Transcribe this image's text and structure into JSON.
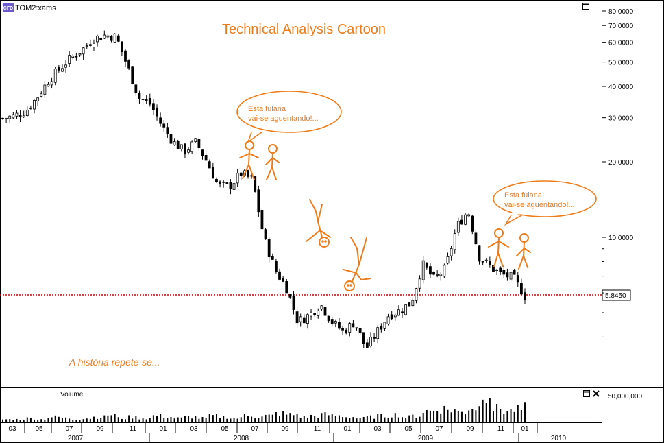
{
  "window": {
    "symbol_badge": "CFD",
    "symbol": "TOM2:xams"
  },
  "annotations": {
    "title": "Technical Analysis Cartoon",
    "bubble_left_line1": "Esta fulana",
    "bubble_left_line2": "vai-se aguentando!...",
    "bubble_right_line1": "Esta fulana",
    "bubble_right_line2": "vai-se aguentando!...",
    "caption": "A história repete-se..."
  },
  "colors": {
    "candles": "#000000",
    "drawing": "#ee7b1a",
    "reference_line": "#cc0000",
    "grid": "#000000"
  },
  "volume_panel": {
    "label": "Volume",
    "tick_label": "50,000,000"
  },
  "icons": {
    "main_panel": "maximize-icon",
    "volume_panel": [
      "maximize-icon",
      "close-icon"
    ]
  },
  "chart_data": {
    "type": "candlestick",
    "scale": "log",
    "y_ticks": [
      "80.0000",
      "70.0000",
      "60.0000",
      "50.0000",
      "40.0000",
      "30.0000",
      "20.0000",
      "10.0000"
    ],
    "y_tick_values": [
      80,
      70,
      60,
      50,
      40,
      30,
      20,
      10
    ],
    "ylim": [
      3.4,
      85
    ],
    "current_price_label": "5.8450",
    "current_price": 5.845,
    "x_month_labels": [
      "03",
      "05",
      "07",
      "09",
      "11",
      "01",
      "03",
      "05",
      "07",
      "09",
      "11",
      "01",
      "03",
      "05",
      "07",
      "09",
      "11",
      "01"
    ],
    "x_year_labels": [
      "2007",
      "2008",
      "2009",
      "2010"
    ],
    "weekly_close": [
      29.8,
      30.5,
      31.8,
      36,
      42,
      47,
      52,
      56,
      62,
      64,
      63,
      48,
      36,
      34,
      28,
      24,
      22,
      24,
      20,
      16,
      16,
      18,
      17,
      10,
      7.4,
      6.3,
      4.6,
      4.9,
      5.4,
      4.6,
      4.2,
      4.6,
      3.6,
      4.2,
      4.9,
      5.1,
      5.5,
      7.8,
      6.8,
      7.5,
      11,
      12.8,
      8.3,
      7.6,
      7.1,
      6.9,
      5.85
    ],
    "volume_bars": [
      2,
      2,
      3,
      2,
      4,
      3,
      2,
      3,
      4,
      6,
      3,
      4,
      3,
      5,
      4,
      3,
      4,
      3,
      5,
      4,
      3,
      6,
      4,
      5,
      7,
      6,
      4,
      5,
      6,
      5,
      4,
      3,
      4,
      5,
      6,
      4,
      5,
      9,
      11,
      10,
      8,
      12,
      26,
      11,
      9,
      10,
      12
    ]
  }
}
